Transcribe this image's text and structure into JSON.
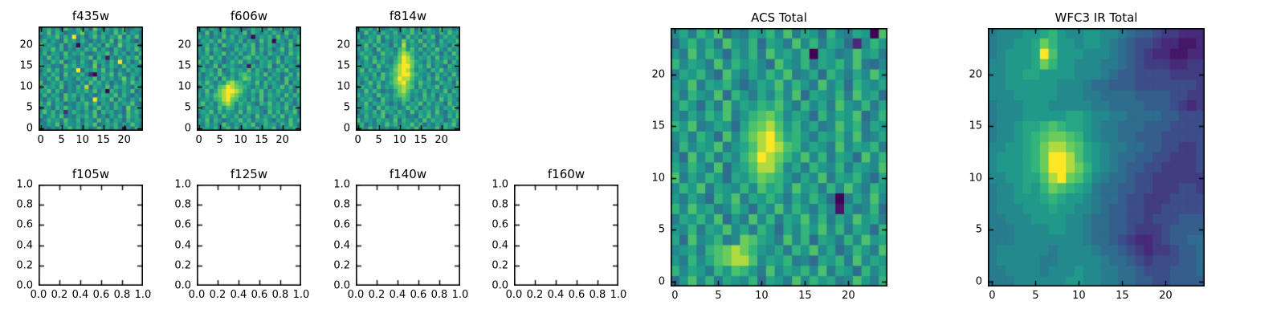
{
  "colormap": {
    "name": "viridis",
    "stops": [
      [
        0.0,
        "#440154"
      ],
      [
        0.125,
        "#482878"
      ],
      [
        0.25,
        "#3e4989"
      ],
      [
        0.375,
        "#31688e"
      ],
      [
        0.5,
        "#26828e"
      ],
      [
        0.625,
        "#1f9e89"
      ],
      [
        0.75,
        "#35b779"
      ],
      [
        0.875,
        "#6ece58"
      ],
      [
        1.0,
        "#fde725"
      ]
    ],
    "axis_color": "#000000",
    "background": "#ffffff"
  },
  "chart_data": [
    {
      "id": "f435w",
      "type": "heatmap",
      "title": "f435w",
      "xticks": [
        "0",
        "5",
        "10",
        "15",
        "20"
      ],
      "yticks": [
        "0",
        "5",
        "10",
        "15",
        "20"
      ],
      "n": 25,
      "value_encoding": "hex digit 0-F mapped to 0-1 on viridis",
      "rows": [
        "79B8A6C97B8A5D96A8B7C68A9",
        "A8C7B9688AD79B6A97C8B7A96",
        "68A9C7B8F7A69C8B7A9D6B8C7",
        "9B7A86C9A7B8697A8C6B9A758",
        "C8A97B6A8097B8A6C97D8A9B6",
        "7A9C8B697A8B9C7A86B97A8C9",
        "8B6A97C8A9B768A9C7B8A697B",
        "97C8A6B987A9C6B8197A8B9C7",
        "A87B9C68A7B86C9A7B8F7A69C",
        "B9A786C9B8A97D6A8B97C8A96",
        "69C8B7A98F6A9B8C7A697B8A9",
        "8A7B96C8A9B7208A9C7B86A97",
        "97B8C6A97B8A9C6B8A79D8B6A",
        "C68A9B7986A7C9B8A697B8C9A",
        "7B9A8C697B8E6A98C7B9A86B9",
        "A9C7B8697A9B8C7A0B97A8C68",
        "8B7A96C9B8A7968BA9C7B8697",
        "96A8B7C9A6B87F9A8C6B97A8B",
        "B8C7A9687A9C8B6A97B8A9C76",
        "7A96B8C97A8B69C8A7B96D8A9",
        "9C8B7A28B97A8C6B9A786C9B8",
        "A79B8C687A9B8C796A8B7C9A6",
        "68B9A7C98B6A97C8B7A96B8A9",
        "97A8C6B98A7B9C68A9B7A8C97",
        "B8697A9C8B7A68C9A7B8096B8"
      ]
    },
    {
      "id": "f606w",
      "type": "heatmap",
      "title": "f606w",
      "xticks": [
        "0",
        "5",
        "10",
        "15",
        "20"
      ],
      "yticks": [
        "0",
        "5",
        "10",
        "15",
        "20"
      ],
      "n": 25,
      "value_encoding": "hex digit 0-F mapped to 0-1 on viridis",
      "rows": [
        "8A7B96C8A9768B9A7C86B9A78",
        "97C6A8B79A8C6B97A8B96C8A7",
        "B8A697C8B7A9608A9B7C8A69B",
        "6A9B8C79A8B6A97C8B0A97B8C",
        "89B7A6C98A7B9C6A8B97A8C6A",
        "A7C8B9687B9A8C7B8A69C7B8A",
        "98B6A9C7A8B79C8A6B98A7C9B",
        "7A9C8B698A7BC8B9A78B6A98C",
        "C8B7A968B9C7A86A9B8C7A97B",
        "9A78C6B9A8791B8A9C68B7A96",
        "8B9A7C68B9A8C7B96A8B9C78A",
        "A69B8C97A8BCA9B8C7A968B7C",
        "97A8B6C9B8ADC8A97B8A6C98B",
        "B8C97A9DECB9A8C7B9A87C6A9",
        "7A9B8CDFEDCB97A8B6A9C8B7A",
        "98C7ADEFFEDA8B9C7A8B98A6C",
        "A7B9CDEFEDB98A7C8B9A7C8B9",
        "89A8BCEFDC9A7B8C6A97B8A7B",
        "9C8A7BDEC8B9A86B9C8A7B96A",
        "B7A98C9CB7A8C9A78B9A8C7B8",
        "8A9C7B8A98C7B9A86C8B7A9C6",
        "69B8A7C98B7A96C8A9B8C7A98",
        "A8C7B968A9C8B7A9B86A97C8B",
        "97B8A6C97A8B9C68B9A7B8C96",
        "C9A8B79C8B6A98B7A9C68A9B7"
      ]
    },
    {
      "id": "f814w",
      "type": "heatmap",
      "title": "f814w",
      "xticks": [
        "0",
        "5",
        "10",
        "15",
        "20"
      ],
      "yticks": [
        "0",
        "5",
        "10",
        "15",
        "20"
      ],
      "n": 25,
      "value_encoding": "hex digit 0-F mapped to 0-1 on viridis",
      "rows": [
        "8A9B7C68A97B8C6A9B87C9A68",
        "97C8A6B98B7A9C8B6A97B8C9A",
        "B68A9C7B8A96C8A7B9C68B9A7",
        "7A9B8C697A8D9B8C7A96B8A9C",
        "98C7B8A96B8E8A97C8B7A96B8",
        "A7B96C8A97BD9C8B7A8C97B8A",
        "8B9A78C9A8CEDB97A8B96A7C9",
        "69C8B7A98ADFEC8A9B7C8A98B",
        "97A8C9B87BDFEDA97B8A9C6B8",
        "B8A96C8A9CEFFD9B8C7A86B9A",
        "8C7B9A78ADEFEC8A97B9C8A97",
        "7A98B6C9BCEFFDB98A6B8A7C8",
        "98B7A9C8ADFEEC9A7B8C97B8A",
        "A69C8B79BDEFDB8C9A78B9A6C",
        "8B9A7C8A9CDEDC7B8A9C7A98B",
        "97C8B9687ADEC9A8B7A98C6B9",
        "B8A97C9A8BCDB897C8B6A9B8A",
        "7A9B86C98A9CB7A8B9A7C8B97",
        "98C7A9B8697B8A9C7B8A96C8A",
        "A8B96C8B9A78C9B6A98B7A9C8",
        "69A8B7C9A8B97C8A9B7C86A9B",
        "97B8A9C68B9A786B9C8A97B8C",
        "C8A97B9A8C6B98A7C8B9A68B9",
        "8B697A8C9B7A9C8B697A8B9C7",
        "9A8C8B7968A9B8C7A98C6B98A"
      ]
    },
    {
      "id": "f105w",
      "type": "empty",
      "title": "f105w",
      "xticks": [
        "0.0",
        "0.2",
        "0.4",
        "0.6",
        "0.8",
        "1.0"
      ],
      "yticks": [
        "0.0",
        "0.2",
        "0.4",
        "0.6",
        "0.8",
        "1.0"
      ],
      "xlim": [
        0,
        1
      ],
      "ylim": [
        0,
        1
      ]
    },
    {
      "id": "f125w",
      "type": "empty",
      "title": "f125w",
      "xticks": [
        "0.0",
        "0.2",
        "0.4",
        "0.6",
        "0.8",
        "1.0"
      ],
      "yticks": [
        "0.0",
        "0.2",
        "0.4",
        "0.6",
        "0.8",
        "1.0"
      ],
      "xlim": [
        0,
        1
      ],
      "ylim": [
        0,
        1
      ]
    },
    {
      "id": "f140w",
      "type": "empty",
      "title": "f140w",
      "xticks": [
        "0.0",
        "0.2",
        "0.4",
        "0.6",
        "0.8",
        "1.0"
      ],
      "yticks": [
        "0.0",
        "0.2",
        "0.4",
        "0.6",
        "0.8",
        "1.0"
      ],
      "xlim": [
        0,
        1
      ],
      "ylim": [
        0,
        1
      ]
    },
    {
      "id": "f160w",
      "type": "empty",
      "title": "f160w",
      "xticks": [
        "0.0",
        "0.2",
        "0.4",
        "0.6",
        "0.8",
        "1.0"
      ],
      "yticks": [
        "0.0",
        "0.2",
        "0.4",
        "0.6",
        "0.8",
        "1.0"
      ],
      "xlim": [
        0,
        1
      ],
      "ylim": [
        0,
        1
      ]
    },
    {
      "id": "acs_total",
      "type": "heatmap",
      "title": "ACS Total",
      "xticks": [
        "0",
        "5",
        "10",
        "15",
        "20"
      ],
      "yticks": [
        "0",
        "5",
        "10",
        "15",
        "20"
      ],
      "n": 25,
      "value_encoding": "hex digit 0-F mapped to 0-1 on viridis",
      "rows": [
        "8A7B9C687A9B8C7A96B87A90C",
        "69B8A7C98B6A97C8B7A9628B9",
        "97C8B96A8B7C9A8B0A978C9A7",
        "B8A97C8B9A86C98B7A9B8C768",
        "7A9B86C97A8B9C78A6B97A8C9",
        "98C7A9B868A9C8B97C8A6B98A",
        "A7B98C6B97A8B8C6A98B7C9A6",
        "8B96A7C8A9BAC97B8A7C98B7A",
        "97A8B9C79BCDB8A96B8A9C68B",
        "B9C78A96ACDEC9B8A78C9B7A9",
        "8A7B96C8BDEFDAB97A9B8C78A",
        "7B8A9C79ACEFECB8A97C8A9B7",
        "96C8B7A8BDFEDB9C8B7A96C8B",
        "A8B97C69ACEEC8A7B98B7A98C",
        "C7A8B96A9BDCB97A8C7A9B86A",
        "8B9C7A98B8CAB8C9A7B8C97B9",
        "97A86B9C7A9B97A8B9607A8C8",
        "B8C9A78B96A8C8B97A81978B6",
        "7A9B8C697C8B7A9C8B7A8C9A7",
        "98B7A9C8A7B96A8B9C8B7A96B",
        "A6C89B78DCA97C8B6A97B8C9A",
        "89A7BCDEDB98A7B9C8A68B97C",
        "97B8ACDEEC8A9B786A9B7C8A9",
        "B8A97B9CB97C8A9B8C7A96B8A",
        "69C8B7A98B6A97C8B9A78C97B"
      ]
    },
    {
      "id": "wfc3_ir_total",
      "type": "heatmap",
      "title": "WFC3 IR Total",
      "xticks": [
        "0",
        "5",
        "10",
        "15",
        "20"
      ],
      "yticks": [
        "0",
        "5",
        "10",
        "15",
        "20"
      ],
      "n": 25,
      "value_encoding": "hex digit 0-F mapped to 0-1 on viridis",
      "rows": [
        "788899AB98899887655433222",
        "78899ADB99899876544322112",
        "78999AFC99988876543221122",
        "88999ADB99888776543332233",
        "8899AA9999888765544443333",
        "8899999988876655544444443",
        "8889999988877666655554433",
        "7888999888887766665554323",
        "788899999AA98877666655444",
        "7889AABCBAA98776665554444",
        "7889ABCDDCB98776655544444",
        "8899ABDEEDCA9877665544334",
        "8999ABDFFECA9876655443334",
        "8999ABDFFEDB9876554433334",
        "8899AACEFDCA8766544333333",
        "7889A9BDCBA97665544333443",
        "788999ABA9987665443334444",
        "7888999A99887655443344444",
        "7788899998876655443444555",
        "7778888998876655433345555",
        "7778888888876654322345566",
        "7888888788887665432334556",
        "7888887788888766543444556",
        "7788887888988776654445556",
        "7778888889988776655445555"
      ]
    }
  ]
}
